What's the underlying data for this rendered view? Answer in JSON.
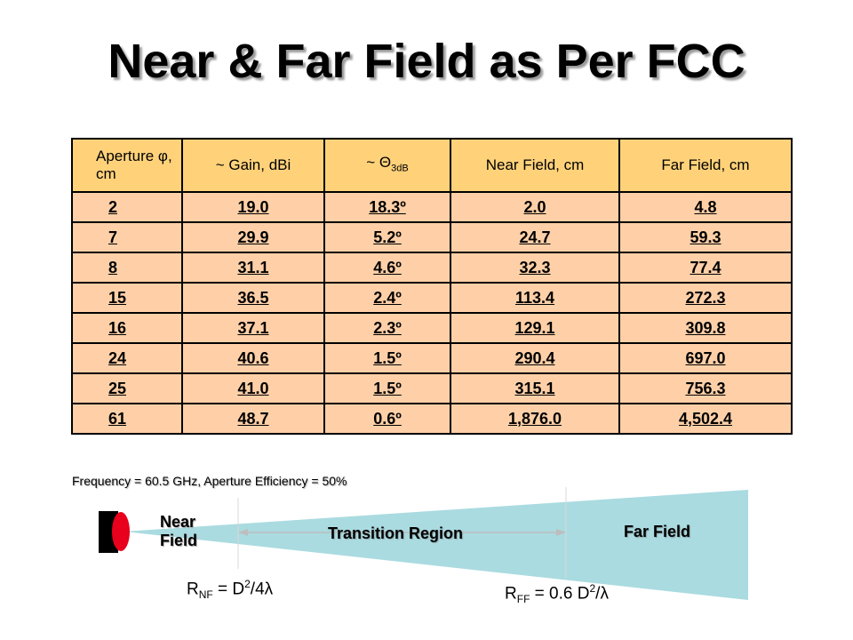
{
  "slide": {
    "title": "Near & Far Field as Per FCC"
  },
  "table": {
    "headers": {
      "aperture": "Aperture φ, cm",
      "gain": "~ Gain, dBi",
      "theta_main": "~ Θ",
      "theta_sub": "3dB",
      "near": "Near Field, cm",
      "far": "Far Field, cm"
    },
    "rows": [
      [
        "2",
        "19.0",
        "18.3º",
        "2.0",
        "4.8"
      ],
      [
        "7",
        "29.9",
        "5.2º",
        "24.7",
        "59.3"
      ],
      [
        "8",
        "31.1",
        "4.6º",
        "32.3",
        "77.4"
      ],
      [
        "15",
        "36.5",
        "2.4º",
        "113.4",
        "272.3"
      ],
      [
        "16",
        "37.1",
        "2.3º",
        "129.1",
        "309.8"
      ],
      [
        "24",
        "40.6",
        "1.5º",
        "290.4",
        "697.0"
      ],
      [
        "25",
        "41.0",
        "1.5º",
        "315.1",
        "756.3"
      ],
      [
        "61",
        "48.7",
        "0.6º",
        "1,876.0",
        "4,502.4"
      ]
    ]
  },
  "note": "Frequency = 60.5 GHz, Aperture Efficiency = 50%",
  "diagram": {
    "near_label": "Near Field",
    "transition_label": "Transition Region",
    "far_label": "Far Field",
    "rnf": {
      "r": "R",
      "sub": "NF",
      "mid": " = D",
      "sup": "2",
      "end": "/4λ"
    },
    "rff": {
      "r": "R",
      "sub": "FF",
      "mid": " = 0.6 D",
      "sup": "2",
      "end": "/λ"
    }
  },
  "colors": {
    "header_fill": "#ffd27a",
    "cell_fill": "#ffd0a8",
    "beam": "#aadbe0",
    "antenna_lens": "#e8001c"
  }
}
